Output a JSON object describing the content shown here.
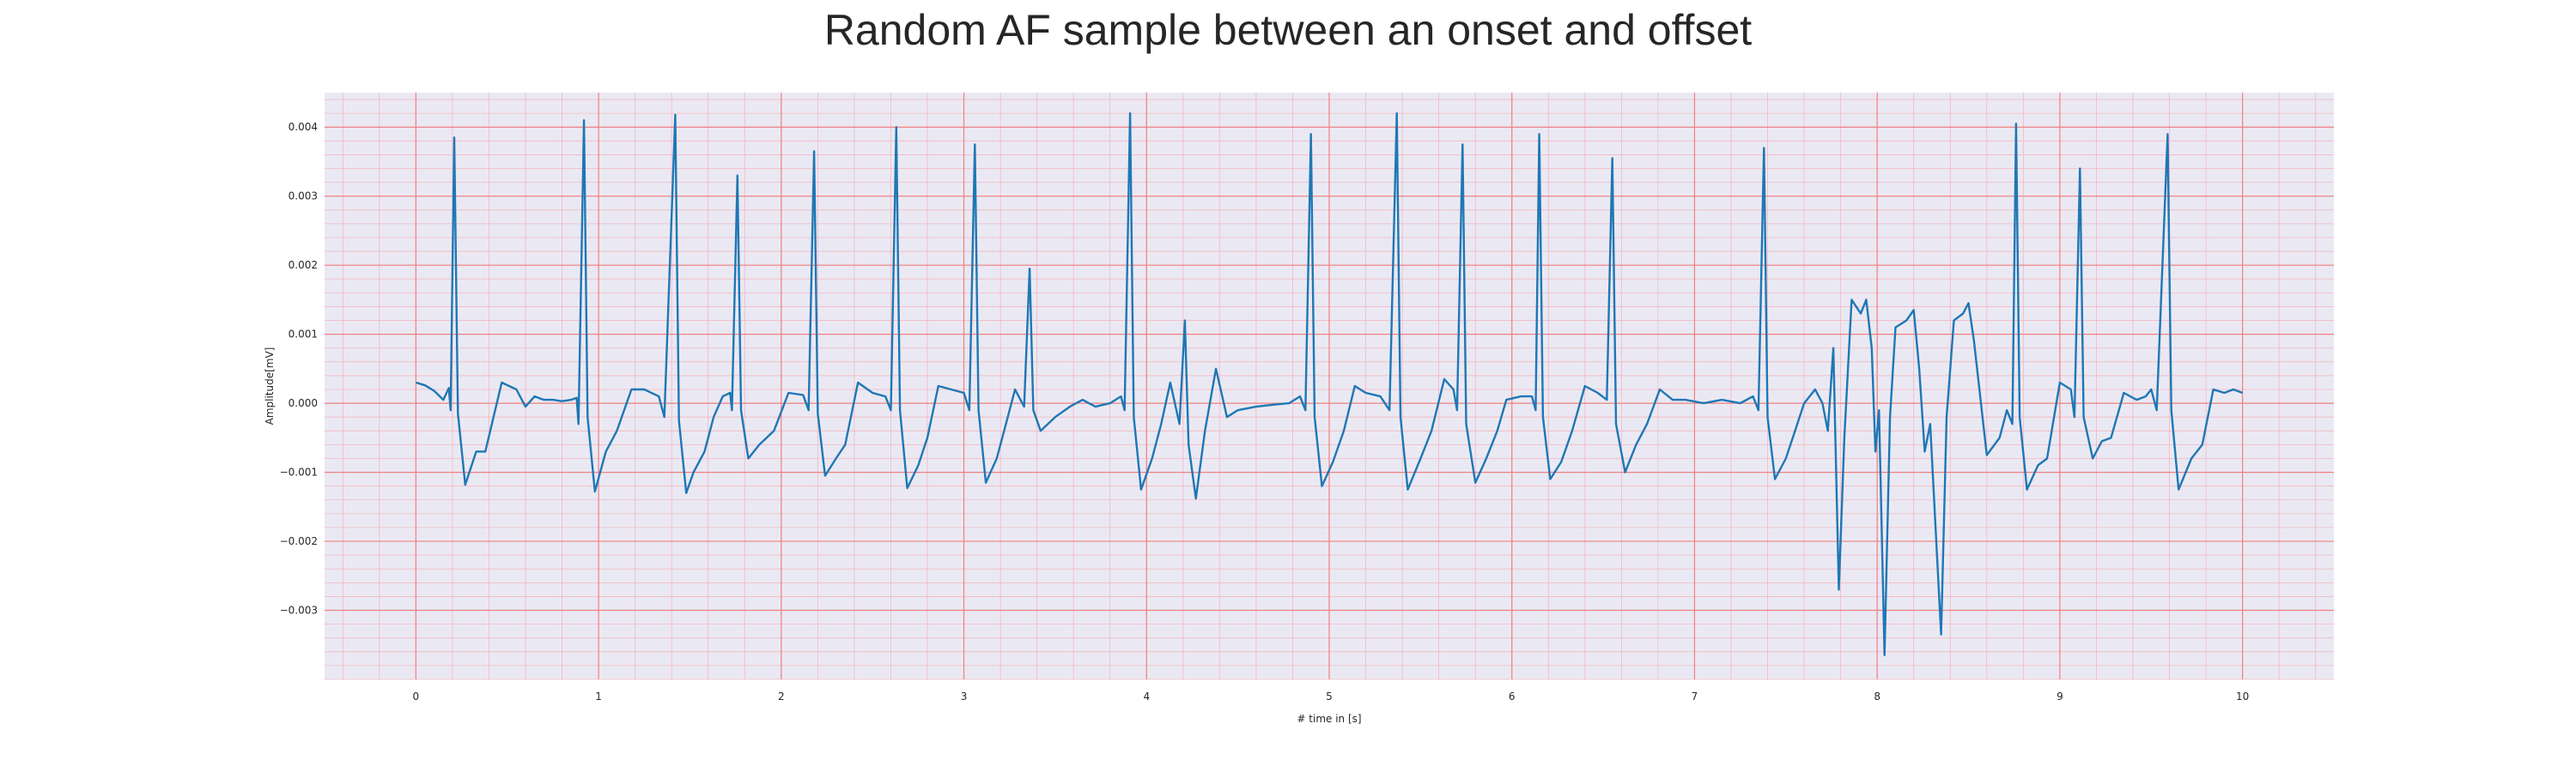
{
  "chart_data": {
    "type": "line",
    "title": "Random AF sample between an onset and offset",
    "xlabel": "# time in [s]",
    "ylabel": "Amplitude[mV]",
    "xlim": [
      -0.5,
      10.5
    ],
    "ylim": [
      -0.004,
      0.0045
    ],
    "x_ticks": [
      0,
      1,
      2,
      3,
      4,
      5,
      6,
      7,
      8,
      9,
      10
    ],
    "x_tick_labels": [
      "0",
      "1",
      "2",
      "3",
      "4",
      "5",
      "6",
      "7",
      "8",
      "9",
      "10"
    ],
    "y_ticks": [
      -0.003,
      -0.002,
      -0.001,
      0.0,
      0.001,
      0.002,
      0.003,
      0.004
    ],
    "y_tick_labels": [
      "−0.003",
      "−0.002",
      "−0.001",
      "0.000",
      "0.001",
      "0.002",
      "0.003",
      "0.004"
    ],
    "grid": true,
    "colors": {
      "line": "#1f77b4",
      "plot_background": "#eae9f3",
      "major_grid": "#f08080",
      "minor_grid": "#f4b6c0",
      "text": "#262626"
    },
    "series": [
      {
        "points": [
          [
            0.0,
            0.0003
          ],
          [
            0.05,
            0.00026
          ],
          [
            0.1,
            0.00018
          ],
          [
            0.15,
            5e-05
          ],
          [
            0.18,
            0.00022
          ],
          [
            0.19,
            -0.0001
          ],
          [
            0.21,
            0.00385
          ],
          [
            0.23,
            -0.00015
          ],
          [
            0.27,
            -0.00118
          ],
          [
            0.33,
            -0.0007
          ],
          [
            0.38,
            -0.0007
          ],
          [
            0.47,
            0.0003
          ],
          [
            0.55,
            0.0002
          ],
          [
            0.6,
            -5e-05
          ],
          [
            0.65,
            0.0001
          ],
          [
            0.7,
            5e-05
          ],
          [
            0.75,
            5e-05
          ],
          [
            0.8,
            3e-05
          ],
          [
            0.85,
            5e-05
          ],
          [
            0.88,
            8e-05
          ],
          [
            0.89,
            -0.0003
          ],
          [
            0.92,
            0.0041
          ],
          [
            0.94,
            -0.0002
          ],
          [
            0.98,
            -0.00128
          ],
          [
            1.04,
            -0.0007
          ],
          [
            1.1,
            -0.0004
          ],
          [
            1.18,
            0.0002
          ],
          [
            1.25,
            0.0002
          ],
          [
            1.33,
            0.0001
          ],
          [
            1.36,
            -0.0002
          ],
          [
            1.42,
            0.00418
          ],
          [
            1.44,
            -0.00025
          ],
          [
            1.48,
            -0.0013
          ],
          [
            1.52,
            -0.001
          ],
          [
            1.58,
            -0.0007
          ],
          [
            1.63,
            -0.0002
          ],
          [
            1.68,
            0.0001
          ],
          [
            1.72,
            0.00015
          ],
          [
            1.73,
            -0.0001
          ],
          [
            1.76,
            0.0033
          ],
          [
            1.78,
            -0.0001
          ],
          [
            1.82,
            -0.0008
          ],
          [
            1.88,
            -0.0006
          ],
          [
            1.96,
            -0.0004
          ],
          [
            2.04,
            0.00015
          ],
          [
            2.12,
            0.00012
          ],
          [
            2.15,
            -0.0001
          ],
          [
            2.18,
            0.00365
          ],
          [
            2.2,
            -0.00015
          ],
          [
            2.24,
            -0.00105
          ],
          [
            2.3,
            -0.0008
          ],
          [
            2.35,
            -0.0006
          ],
          [
            2.42,
            0.0003
          ],
          [
            2.5,
            0.00015
          ],
          [
            2.57,
            0.0001
          ],
          [
            2.6,
            -0.0001
          ],
          [
            2.63,
            0.004
          ],
          [
            2.65,
            -0.0001
          ],
          [
            2.69,
            -0.00123
          ],
          [
            2.75,
            -0.0009
          ],
          [
            2.8,
            -0.0005
          ],
          [
            2.86,
            0.00025
          ],
          [
            2.93,
            0.0002
          ],
          [
            3.0,
            0.00015
          ],
          [
            3.03,
            -0.0001
          ],
          [
            3.06,
            0.00375
          ],
          [
            3.08,
            -0.0001
          ],
          [
            3.12,
            -0.00115
          ],
          [
            3.18,
            -0.0008
          ],
          [
            3.23,
            -0.0003
          ],
          [
            3.28,
            0.0002
          ],
          [
            3.33,
            -5e-05
          ],
          [
            3.36,
            0.00195
          ],
          [
            3.38,
            -0.0001
          ],
          [
            3.42,
            -0.0004
          ],
          [
            3.5,
            -0.0002
          ],
          [
            3.58,
            -5e-05
          ],
          [
            3.65,
            5e-05
          ],
          [
            3.72,
            -5e-05
          ],
          [
            3.8,
            0.0
          ],
          [
            3.86,
            0.0001
          ],
          [
            3.88,
            -0.0001
          ],
          [
            3.91,
            0.0042
          ],
          [
            3.93,
            -0.0002
          ],
          [
            3.97,
            -0.00125
          ],
          [
            4.03,
            -0.0008
          ],
          [
            4.08,
            -0.0003
          ],
          [
            4.13,
            0.0003
          ],
          [
            4.18,
            -0.0003
          ],
          [
            4.21,
            0.0012
          ],
          [
            4.23,
            -0.0006
          ],
          [
            4.27,
            -0.00138
          ],
          [
            4.32,
            -0.0004
          ],
          [
            4.38,
            0.0005
          ],
          [
            4.44,
            -0.0002
          ],
          [
            4.5,
            -0.0001
          ],
          [
            4.6,
            -5e-05
          ],
          [
            4.7,
            -2e-05
          ],
          [
            4.78,
            0.0
          ],
          [
            4.84,
            0.0001
          ],
          [
            4.87,
            -0.0001
          ],
          [
            4.9,
            0.0039
          ],
          [
            4.92,
            -0.0002
          ],
          [
            4.96,
            -0.0012
          ],
          [
            5.02,
            -0.00085
          ],
          [
            5.08,
            -0.0004
          ],
          [
            5.14,
            0.00025
          ],
          [
            5.2,
            0.00015
          ],
          [
            5.28,
            0.0001
          ],
          [
            5.33,
            -0.0001
          ],
          [
            5.37,
            0.0042
          ],
          [
            5.39,
            -0.0002
          ],
          [
            5.43,
            -0.00125
          ],
          [
            5.5,
            -0.0008
          ],
          [
            5.56,
            -0.0004
          ],
          [
            5.63,
            0.00035
          ],
          [
            5.68,
            0.0002
          ],
          [
            5.7,
            -0.0001
          ],
          [
            5.73,
            0.00375
          ],
          [
            5.75,
            -0.0003
          ],
          [
            5.8,
            -0.00115
          ],
          [
            5.86,
            -0.0008
          ],
          [
            5.92,
            -0.0004
          ],
          [
            5.97,
            5e-05
          ],
          [
            6.05,
            0.0001
          ],
          [
            6.11,
            0.0001
          ],
          [
            6.13,
            -0.0001
          ],
          [
            6.15,
            0.0039
          ],
          [
            6.17,
            -0.0002
          ],
          [
            6.21,
            -0.0011
          ],
          [
            6.27,
            -0.00085
          ],
          [
            6.33,
            -0.0004
          ],
          [
            6.4,
            0.00025
          ],
          [
            6.47,
            0.00015
          ],
          [
            6.52,
            5e-05
          ],
          [
            6.55,
            0.00355
          ],
          [
            6.57,
            -0.0003
          ],
          [
            6.62,
            -0.001
          ],
          [
            6.68,
            -0.0006
          ],
          [
            6.74,
            -0.0003
          ],
          [
            6.81,
            0.0002
          ],
          [
            6.88,
            5e-05
          ],
          [
            6.95,
            5e-05
          ],
          [
            7.05,
            0.0
          ],
          [
            7.15,
            5e-05
          ],
          [
            7.25,
            0.0
          ],
          [
            7.32,
            0.0001
          ],
          [
            7.35,
            -0.0001
          ],
          [
            7.38,
            0.0037
          ],
          [
            7.4,
            -0.0002
          ],
          [
            7.44,
            -0.0011
          ],
          [
            7.5,
            -0.0008
          ],
          [
            7.55,
            -0.0004
          ],
          [
            7.6,
            0.0
          ],
          [
            7.66,
            0.0002
          ],
          [
            7.7,
            0.0
          ],
          [
            7.73,
            -0.0004
          ],
          [
            7.76,
            0.0008
          ],
          [
            7.79,
            -0.0027
          ],
          [
            7.82,
            -0.0005
          ],
          [
            7.86,
            0.0015
          ],
          [
            7.91,
            0.0013
          ],
          [
            7.94,
            0.0015
          ],
          [
            7.97,
            0.0008
          ],
          [
            7.99,
            -0.0007
          ],
          [
            8.01,
            -0.0001
          ],
          [
            8.04,
            -0.00365
          ],
          [
            8.07,
            -0.0002
          ],
          [
            8.1,
            0.0011
          ],
          [
            8.16,
            0.0012
          ],
          [
            8.2,
            0.00135
          ],
          [
            8.23,
            0.0005
          ],
          [
            8.26,
            -0.0007
          ],
          [
            8.29,
            -0.0003
          ],
          [
            8.35,
            -0.00335
          ],
          [
            8.38,
            -0.0002
          ],
          [
            8.42,
            0.0012
          ],
          [
            8.47,
            0.0013
          ],
          [
            8.5,
            0.00145
          ],
          [
            8.53,
            0.0009
          ],
          [
            8.6,
            -0.00075
          ],
          [
            8.67,
            -0.0005
          ],
          [
            8.71,
            -0.0001
          ],
          [
            8.74,
            -0.0003
          ],
          [
            8.76,
            0.00405
          ],
          [
            8.78,
            -0.0002
          ],
          [
            8.82,
            -0.00125
          ],
          [
            8.88,
            -0.0009
          ],
          [
            8.93,
            -0.0008
          ],
          [
            9.0,
            0.0003
          ],
          [
            9.06,
            0.0002
          ],
          [
            9.08,
            -0.0002
          ],
          [
            9.11,
            0.0034
          ],
          [
            9.13,
            -0.0002
          ],
          [
            9.18,
            -0.0008
          ],
          [
            9.23,
            -0.00055
          ],
          [
            9.28,
            -0.0005
          ],
          [
            9.35,
            0.00015
          ],
          [
            9.42,
            5e-05
          ],
          [
            9.47,
            0.0001
          ],
          [
            9.5,
            0.0002
          ],
          [
            9.53,
            -0.0001
          ],
          [
            9.59,
            0.0039
          ],
          [
            9.61,
            -0.0001
          ],
          [
            9.65,
            -0.00125
          ],
          [
            9.72,
            -0.0008
          ],
          [
            9.78,
            -0.0006
          ],
          [
            9.84,
            0.0002
          ],
          [
            9.9,
            0.00015
          ],
          [
            9.95,
            0.0002
          ],
          [
            10.0,
            0.00015
          ]
        ]
      }
    ]
  }
}
